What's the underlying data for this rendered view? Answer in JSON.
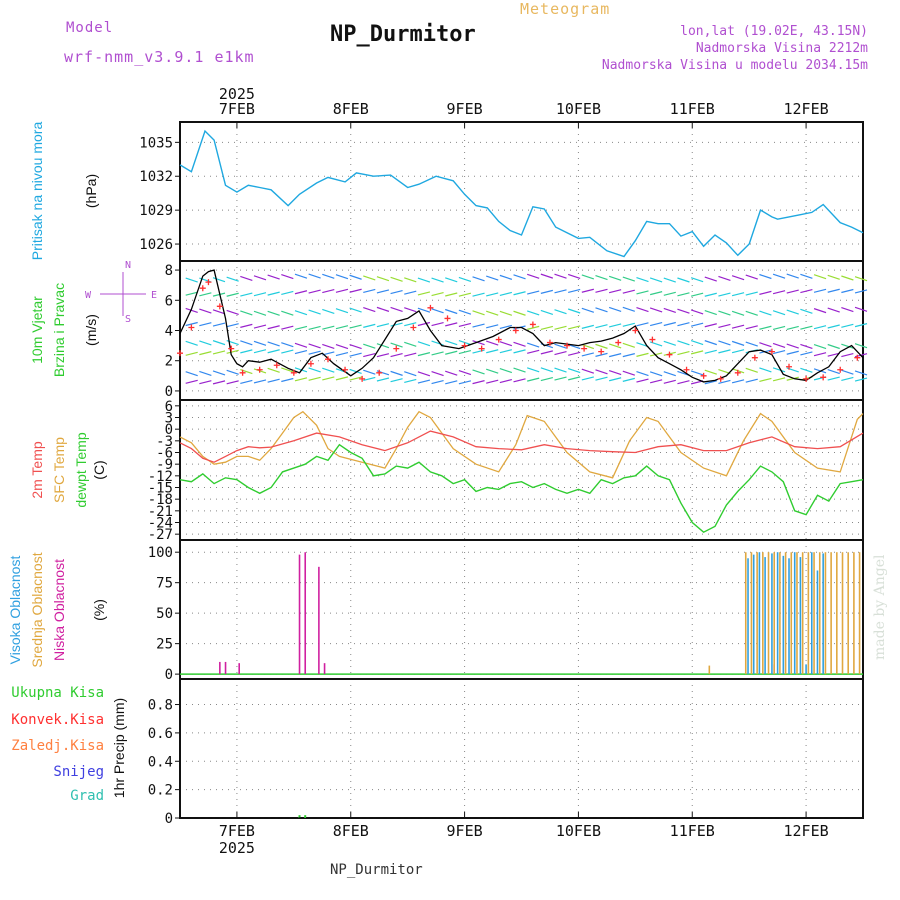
{
  "header": {
    "model_label": "Model",
    "model_name": "wrf-nmm_v3.9.1 e1km",
    "meteogram_label": "Meteogram",
    "station_title": "NP_Durmitor",
    "lonlat": "lon,lat (19.02E, 43.15N)",
    "altitude": "Nadmorska Visina 2212m",
    "model_altitude": "Nadmorska Visina u modelu 2034.15m"
  },
  "footer": {
    "station_name": "NP_Durmitor"
  },
  "credit": "made by Angel",
  "colors": {
    "pressure": "#1fa8e0",
    "wind_speed": "#000000",
    "wind_gust": "#ff3030",
    "temp_2m": "#f05050",
    "temp_sfc": "#e0a840",
    "dewpoint": "#30cc30",
    "cloud_high": "#30a0e0",
    "cloud_mid": "#e0a840",
    "cloud_low": "#d020a0",
    "precip_total": "#30cc30",
    "precip_conv": "#ff3030",
    "precip_frz": "#ff8040",
    "precip_snow": "#4040e0",
    "precip_hail": "#30c0b0"
  },
  "axes": {
    "year_top": "2025",
    "year_bottom": "2025",
    "dates": [
      "7FEB",
      "8FEB",
      "9FEB",
      "10FEB",
      "11FEB",
      "12FEB"
    ]
  },
  "chart_data": [
    {
      "type": "line",
      "panel": "pressure",
      "ylabel_left": "Pritisak na nivou mora",
      "ylabel_unit": "(hPa)",
      "yticks": [
        1026,
        1029,
        1032,
        1035
      ],
      "ylim": [
        1024.5,
        1036.8
      ],
      "x_days": [
        6.5,
        7.0,
        7.5,
        8.0,
        8.5,
        9.0,
        9.5,
        10.0,
        10.5,
        11.0,
        11.5,
        12.0,
        12.5
      ],
      "series": [
        {
          "x": [
            6.5,
            6.6,
            6.72,
            6.8,
            6.9,
            7.0,
            7.1,
            7.2,
            7.3,
            7.45,
            7.55,
            7.7,
            7.8,
            7.95,
            8.05,
            8.2,
            8.35,
            8.5,
            8.6,
            8.75,
            8.9,
            9.0,
            9.1,
            9.2,
            9.3,
            9.4,
            9.5,
            9.6,
            9.7,
            9.8,
            9.9,
            10.0,
            10.1,
            10.25,
            10.4,
            10.5,
            10.6,
            10.7,
            10.8,
            10.9,
            11.0,
            11.1,
            11.2,
            11.3,
            11.4,
            11.5,
            11.6,
            11.7,
            11.75,
            11.85,
            11.95,
            12.05,
            12.15,
            12.3,
            12.4,
            12.5
          ],
          "values": [
            1033.0,
            1032.4,
            1036.0,
            1035.2,
            1031.2,
            1030.6,
            1031.2,
            1031.0,
            1030.8,
            1029.4,
            1030.4,
            1031.4,
            1031.9,
            1031.5,
            1032.3,
            1032.0,
            1032.1,
            1031.0,
            1031.3,
            1032.0,
            1031.6,
            1030.4,
            1029.4,
            1029.2,
            1028.0,
            1027.2,
            1026.8,
            1029.3,
            1029.1,
            1027.5,
            1027.0,
            1026.5,
            1026.6,
            1025.4,
            1024.9,
            1026.3,
            1028.0,
            1027.8,
            1027.8,
            1026.7,
            1027.1,
            1025.8,
            1026.8,
            1026.1,
            1025.0,
            1026.0,
            1029.0,
            1028.4,
            1028.2,
            1028.4,
            1028.6,
            1028.8,
            1029.5,
            1027.9,
            1027.5,
            1027.0
          ]
        }
      ]
    },
    {
      "type": "line",
      "panel": "wind",
      "ylabel_left": "10m Vjetar",
      "ylabel_left2": "Brzina i Pravac",
      "ylabel_unit": "(m/s)",
      "compass": {
        "n": "N",
        "s": "S",
        "w": "W",
        "e": "E"
      },
      "yticks": [
        0,
        2,
        4,
        6,
        8
      ],
      "ylim": [
        -0.6,
        8.6
      ],
      "series": [
        {
          "name": "speed",
          "x": [
            6.5,
            6.6,
            6.7,
            6.75,
            6.8,
            6.9,
            6.95,
            7.0,
            7.05,
            7.1,
            7.2,
            7.3,
            7.45,
            7.55,
            7.65,
            7.75,
            7.85,
            8.0,
            8.1,
            8.2,
            8.3,
            8.4,
            8.5,
            8.6,
            8.7,
            8.8,
            8.95,
            9.1,
            9.25,
            9.4,
            9.5,
            9.6,
            9.7,
            9.8,
            9.9,
            10.0,
            10.1,
            10.2,
            10.3,
            10.4,
            10.5,
            10.6,
            10.7,
            10.8,
            10.9,
            11.0,
            11.1,
            11.2,
            11.3,
            11.4,
            11.5,
            11.6,
            11.7,
            11.8,
            11.9,
            12.0,
            12.1,
            12.2,
            12.3,
            12.4,
            12.5
          ],
          "values": [
            3.8,
            5.4,
            7.6,
            7.9,
            8.0,
            4.8,
            2.4,
            1.8,
            1.6,
            2.0,
            1.9,
            2.1,
            1.5,
            1.2,
            2.2,
            2.5,
            1.8,
            1.0,
            1.5,
            2.2,
            3.4,
            4.6,
            4.8,
            5.3,
            4.0,
            3.0,
            2.8,
            3.2,
            3.6,
            4.2,
            4.2,
            3.8,
            3.0,
            3.2,
            3.1,
            3.0,
            3.2,
            3.3,
            3.5,
            3.8,
            4.3,
            3.0,
            2.2,
            1.8,
            1.4,
            0.9,
            0.6,
            0.7,
            1.0,
            1.8,
            2.6,
            2.7,
            2.4,
            1.1,
            0.8,
            0.7,
            1.2,
            1.6,
            2.6,
            3.0,
            2.2
          ]
        },
        {
          "name": "gust",
          "x": [
            6.5,
            6.6,
            6.7,
            6.75,
            6.85,
            6.95,
            7.05,
            7.2,
            7.35,
            7.5,
            7.65,
            7.8,
            7.95,
            8.1,
            8.25,
            8.4,
            8.55,
            8.7,
            8.85,
            9.0,
            9.15,
            9.3,
            9.45,
            9.6,
            9.75,
            9.9,
            10.05,
            10.2,
            10.35,
            10.5,
            10.65,
            10.8,
            10.95,
            11.1,
            11.25,
            11.4,
            11.55,
            11.7,
            11.85,
            12.0,
            12.15,
            12.3,
            12.45
          ],
          "values": [
            2.5,
            4.2,
            6.8,
            7.2,
            5.6,
            2.8,
            1.2,
            1.4,
            1.7,
            1.2,
            1.8,
            2.1,
            1.4,
            0.8,
            1.2,
            2.8,
            4.2,
            5.5,
            4.8,
            3.0,
            2.8,
            3.4,
            4.0,
            4.4,
            3.2,
            3.0,
            2.8,
            2.6,
            3.2,
            4.0,
            3.4,
            2.4,
            1.4,
            1.0,
            0.8,
            1.2,
            2.2,
            2.6,
            1.6,
            0.8,
            0.9,
            1.4,
            2.2
          ]
        }
      ]
    },
    {
      "type": "line",
      "panel": "temperature",
      "ylabel_left": "2m Temp",
      "ylabel_left2": "SFC Temp",
      "ylabel_left3": "dewpt Temp",
      "ylabel_unit": "(C)",
      "yticks": [
        6,
        3,
        0,
        -3,
        -6,
        -9,
        -12,
        -15,
        -18,
        -21,
        -24,
        -27
      ],
      "ylim": [
        -28.5,
        7.5
      ],
      "series": [
        {
          "name": "2m",
          "x": [
            6.5,
            6.6,
            6.7,
            6.8,
            6.9,
            7.0,
            7.1,
            7.2,
            7.3,
            7.5,
            7.7,
            7.9,
            8.1,
            8.3,
            8.5,
            8.7,
            8.9,
            9.1,
            9.3,
            9.5,
            9.7,
            9.9,
            10.1,
            10.3,
            10.5,
            10.7,
            10.9,
            11.1,
            11.3,
            11.5,
            11.7,
            11.9,
            12.1,
            12.3,
            12.5
          ],
          "values": [
            -3.5,
            -5.0,
            -7.5,
            -8.5,
            -7.0,
            -5.5,
            -4.5,
            -4.8,
            -4.6,
            -3.0,
            -1.0,
            -2.0,
            -4.0,
            -5.5,
            -3.5,
            -0.5,
            -2.0,
            -4.5,
            -5.0,
            -5.3,
            -4.0,
            -5.0,
            -5.5,
            -5.8,
            -6.0,
            -4.5,
            -4.0,
            -5.5,
            -5.5,
            -3.5,
            -2.0,
            -4.5,
            -5.0,
            -4.5,
            -1.0
          ]
        },
        {
          "name": "sfc",
          "x": [
            6.5,
            6.6,
            6.7,
            6.8,
            6.9,
            7.0,
            7.1,
            7.2,
            7.3,
            7.4,
            7.5,
            7.58,
            7.7,
            7.8,
            7.9,
            8.1,
            8.3,
            8.4,
            8.5,
            8.6,
            8.7,
            8.9,
            9.1,
            9.3,
            9.45,
            9.55,
            9.7,
            9.9,
            10.1,
            10.3,
            10.45,
            10.6,
            10.7,
            10.9,
            11.1,
            11.3,
            11.45,
            11.6,
            11.7,
            11.9,
            12.1,
            12.3,
            12.45,
            12.5
          ],
          "values": [
            -2.0,
            -3.5,
            -7.0,
            -9.0,
            -8.5,
            -7.0,
            -7.0,
            -8.0,
            -5.0,
            -1.0,
            3.0,
            4.5,
            1.0,
            -5.0,
            -7.0,
            -8.5,
            -10.0,
            -5.0,
            0.5,
            4.5,
            3.0,
            -5.0,
            -9.0,
            -11.0,
            -4.0,
            3.5,
            2.0,
            -6.0,
            -11.0,
            -12.5,
            -3.0,
            3.0,
            2.0,
            -6.0,
            -10.0,
            -12.0,
            -3.0,
            4.0,
            2.0,
            -6.0,
            -10.0,
            -11.0,
            2.5,
            4.0
          ]
        },
        {
          "name": "dewpt",
          "x": [
            6.5,
            6.6,
            6.7,
            6.8,
            6.9,
            7.0,
            7.1,
            7.2,
            7.3,
            7.4,
            7.5,
            7.6,
            7.7,
            7.8,
            7.9,
            8.0,
            8.1,
            8.2,
            8.3,
            8.4,
            8.5,
            8.6,
            8.7,
            8.8,
            8.9,
            9.0,
            9.1,
            9.2,
            9.3,
            9.4,
            9.5,
            9.6,
            9.7,
            9.8,
            9.9,
            10.0,
            10.1,
            10.2,
            10.3,
            10.4,
            10.5,
            10.6,
            10.7,
            10.8,
            10.9,
            11.0,
            11.1,
            11.2,
            11.3,
            11.4,
            11.5,
            11.6,
            11.7,
            11.8,
            11.9,
            12.0,
            12.1,
            12.2,
            12.3,
            12.4,
            12.5
          ],
          "values": [
            -13.0,
            -13.5,
            -11.5,
            -14.0,
            -12.5,
            -13.0,
            -15.0,
            -16.5,
            -15.0,
            -11.0,
            -10.0,
            -9.0,
            -7.0,
            -8.0,
            -4.0,
            -6.0,
            -7.5,
            -12.0,
            -11.5,
            -9.5,
            -10.0,
            -8.5,
            -11.0,
            -12.0,
            -14.0,
            -13.0,
            -16.0,
            -15.0,
            -15.5,
            -14.0,
            -13.5,
            -15.0,
            -14.0,
            -15.5,
            -16.5,
            -15.5,
            -16.5,
            -13.0,
            -14.0,
            -12.5,
            -12.0,
            -9.5,
            -12.0,
            -13.0,
            -19.0,
            -24.0,
            -26.5,
            -25.0,
            -19.5,
            -16.0,
            -13.0,
            -9.5,
            -11.0,
            -13.5,
            -21.0,
            -22.0,
            -17.0,
            -18.5,
            -14.0,
            -13.5,
            -13.0
          ]
        }
      ]
    },
    {
      "type": "bar",
      "panel": "cloud",
      "ylabel_left": "Visoka Oblacnost",
      "ylabel_left2": "Srednja Oblacnost",
      "ylabel_left3": "Niska Oblacnost",
      "ylabel_unit": "(%)",
      "yticks": [
        0,
        25,
        50,
        75,
        100
      ],
      "ylim": [
        -4,
        110
      ],
      "series": [
        {
          "name": "low",
          "x": [
            6.85,
            6.9,
            7.02,
            7.55,
            7.6,
            7.72,
            7.77,
            11.72
          ],
          "values": [
            10,
            10,
            9,
            98,
            100,
            88,
            9,
            8
          ]
        },
        {
          "name": "mid",
          "x": [
            11.15,
            11.47,
            11.52,
            11.57,
            11.62,
            11.67,
            11.72,
            11.77,
            11.82,
            11.87,
            11.92,
            11.97,
            12.02,
            12.07,
            12.12,
            12.17,
            12.22,
            12.27,
            12.32,
            12.37,
            12.42,
            12.47
          ],
          "values": [
            7,
            100,
            100,
            100,
            100,
            100,
            100,
            100,
            100,
            100,
            100,
            100,
            100,
            100,
            100,
            100,
            100,
            100,
            100,
            100,
            100,
            100
          ]
        },
        {
          "name": "high",
          "x": [
            11.49,
            11.54,
            11.59,
            11.64,
            11.7,
            11.75,
            11.8,
            11.85,
            11.9,
            11.95,
            12.0,
            12.05,
            12.1,
            12.15
          ],
          "values": [
            95,
            98,
            100,
            96,
            99,
            100,
            97,
            95,
            100,
            96,
            8,
            100,
            85,
            99
          ]
        }
      ]
    },
    {
      "type": "bar",
      "panel": "precip",
      "ylabel_left": "1hr Precip (mm)",
      "legend": [
        "Ukupna Kisa",
        "Konvek.Kisa",
        "Zaledj.Kisa",
        "Snijeg",
        "Grad"
      ],
      "yticks": [
        0,
        0.2,
        0.4,
        0.6,
        0.8
      ],
      "ylim": [
        0,
        0.98
      ],
      "series": [
        {
          "name": "Ukupna Kisa",
          "x": [
            7.55,
            7.6
          ],
          "values": [
            0.02,
            0.02
          ]
        }
      ]
    }
  ]
}
